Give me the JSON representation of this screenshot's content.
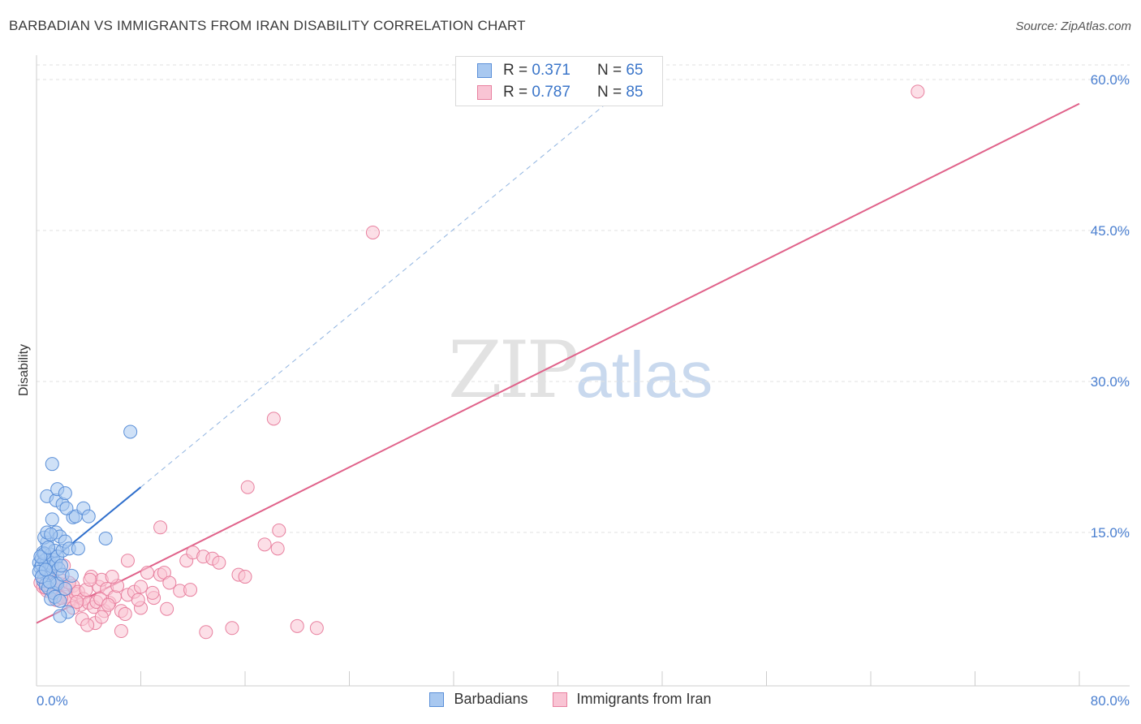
{
  "header": {
    "title": "BARBADIAN VS IMMIGRANTS FROM IRAN DISABILITY CORRELATION CHART",
    "source": "Source: ZipAtlas.com"
  },
  "watermark": {
    "zip": "ZIP",
    "atlas": "atlas"
  },
  "legend": {
    "rows": [
      {
        "r_label": "R =",
        "r_value": "0.371",
        "n_label": "N =",
        "n_value": "65",
        "color": "#a8c8f0",
        "border": "#5a8fd8"
      },
      {
        "r_label": "R =",
        "r_value": "0.787",
        "n_label": "N =",
        "n_value": "85",
        "color": "#f9c4d4",
        "border": "#e8809f"
      }
    ]
  },
  "bottom_legend": {
    "items": [
      "Barbadians",
      "Immigrants from Iran"
    ]
  },
  "colors": {
    "blue_fill": "#a8c8f0",
    "blue_stroke": "#5a8fd8",
    "blue_line": "#2f6fcc",
    "pink_fill": "#f9c4d4",
    "pink_stroke": "#e8809f",
    "pink_line": "#e0628a",
    "grid": "#e2e2e2",
    "tick_text": "#4a7fd0"
  },
  "chart_data": {
    "type": "scatter",
    "title": "BARBADIAN VS IMMIGRANTS FROM IRAN DISABILITY CORRELATION CHART",
    "xlabel": "",
    "ylabel": "Disability",
    "xlim": [
      0,
      80
    ],
    "ylim": [
      0,
      65
    ],
    "x_tick_labels": [
      "0.0%",
      "80.0%"
    ],
    "y_ticks": [
      15,
      30,
      45,
      60
    ],
    "y_tick_labels": [
      "15.0%",
      "30.0%",
      "45.0%",
      "60.0%"
    ],
    "grid": true,
    "legend_position": "top-center",
    "series": [
      {
        "name": "Barbadians",
        "R": 0.371,
        "N": 65,
        "trend": {
          "x0": 0,
          "y0": 11.0,
          "x1": 8.0,
          "y1": 19.5,
          "dashed_to_x": 45,
          "dashed_to_y": 59.0
        },
        "points": [
          [
            0.2,
            12.0
          ],
          [
            0.3,
            11.5
          ],
          [
            0.4,
            12.5
          ],
          [
            0.5,
            11.0
          ],
          [
            0.5,
            13.0
          ],
          [
            0.6,
            12.2
          ],
          [
            0.7,
            11.8
          ],
          [
            0.8,
            12.4
          ],
          [
            0.8,
            14.0
          ],
          [
            0.9,
            11.2
          ],
          [
            1.0,
            12.0
          ],
          [
            1.0,
            10.5
          ],
          [
            1.1,
            12.8
          ],
          [
            1.2,
            11.6
          ],
          [
            1.3,
            12.3
          ],
          [
            1.4,
            13.2
          ],
          [
            1.5,
            11.9
          ],
          [
            1.5,
            10.0
          ],
          [
            1.6,
            12.6
          ],
          [
            1.7,
            11.4
          ],
          [
            0.6,
            14.5
          ],
          [
            0.8,
            15.0
          ],
          [
            1.2,
            16.3
          ],
          [
            1.5,
            15.0
          ],
          [
            1.8,
            14.6
          ],
          [
            2.0,
            13.2
          ],
          [
            2.2,
            14.1
          ],
          [
            2.5,
            13.4
          ],
          [
            2.8,
            16.5
          ],
          [
            3.0,
            16.6
          ],
          [
            0.8,
            18.6
          ],
          [
            1.5,
            18.2
          ],
          [
            1.6,
            19.3
          ],
          [
            2.0,
            17.8
          ],
          [
            2.2,
            18.9
          ],
          [
            2.3,
            17.4
          ],
          [
            3.6,
            17.4
          ],
          [
            4.0,
            16.6
          ],
          [
            1.2,
            21.8
          ],
          [
            7.2,
            25.0
          ],
          [
            0.5,
            10.2
          ],
          [
            0.7,
            9.8
          ],
          [
            0.9,
            9.5
          ],
          [
            1.1,
            8.4
          ],
          [
            1.3,
            9.0
          ],
          [
            1.4,
            8.6
          ],
          [
            1.6,
            9.9
          ],
          [
            1.8,
            8.2
          ],
          [
            2.0,
            10.8
          ],
          [
            2.2,
            9.4
          ],
          [
            2.4,
            7.1
          ],
          [
            1.8,
            6.7
          ],
          [
            0.4,
            11.8
          ],
          [
            0.6,
            12.9
          ],
          [
            0.3,
            12.6
          ],
          [
            0.9,
            13.5
          ],
          [
            1.1,
            14.8
          ],
          [
            2.7,
            10.7
          ],
          [
            5.3,
            14.4
          ],
          [
            3.2,
            13.4
          ],
          [
            0.2,
            11.1
          ],
          [
            0.4,
            10.6
          ],
          [
            0.7,
            11.3
          ],
          [
            1.0,
            10.1
          ],
          [
            1.9,
            11.7
          ]
        ]
      },
      {
        "name": "Immigrants from Iran",
        "R": 0.787,
        "N": 85,
        "trend": {
          "x0": 0,
          "y0": 6.0,
          "x1": 80,
          "y1": 57.6
        },
        "points": [
          [
            0.3,
            10.0
          ],
          [
            0.5,
            9.6
          ],
          [
            0.6,
            10.4
          ],
          [
            0.8,
            9.2
          ],
          [
            1.0,
            9.8
          ],
          [
            1.2,
            10.6
          ],
          [
            1.4,
            9.4
          ],
          [
            1.6,
            8.8
          ],
          [
            1.8,
            9.9
          ],
          [
            2.0,
            10.2
          ],
          [
            2.2,
            8.6
          ],
          [
            2.4,
            9.5
          ],
          [
            2.6,
            8.2
          ],
          [
            2.8,
            9.7
          ],
          [
            3.0,
            8.9
          ],
          [
            3.2,
            9.1
          ],
          [
            3.4,
            7.8
          ],
          [
            3.6,
            8.4
          ],
          [
            3.8,
            9.3
          ],
          [
            4.0,
            8.0
          ],
          [
            4.2,
            10.6
          ],
          [
            4.4,
            7.6
          ],
          [
            4.6,
            8.1
          ],
          [
            4.8,
            9.6
          ],
          [
            5.0,
            10.3
          ],
          [
            5.2,
            7.2
          ],
          [
            5.4,
            9.4
          ],
          [
            5.6,
            8.0
          ],
          [
            6.0,
            8.6
          ],
          [
            6.5,
            7.2
          ],
          [
            7.0,
            8.8
          ],
          [
            7.5,
            9.1
          ],
          [
            8.0,
            9.6
          ],
          [
            8.5,
            11.0
          ],
          [
            9.0,
            8.5
          ],
          [
            9.5,
            10.8
          ],
          [
            10.0,
            7.4
          ],
          [
            11.0,
            9.2
          ],
          [
            11.5,
            12.2
          ],
          [
            12.0,
            13.0
          ],
          [
            12.8,
            12.6
          ],
          [
            13.5,
            12.4
          ],
          [
            14.0,
            12.0
          ],
          [
            15.5,
            10.8
          ],
          [
            16.0,
            10.6
          ],
          [
            17.5,
            13.8
          ],
          [
            18.5,
            13.4
          ],
          [
            20.0,
            5.7
          ],
          [
            21.5,
            5.5
          ],
          [
            6.5,
            5.2
          ],
          [
            4.5,
            6.0
          ],
          [
            3.5,
            6.4
          ],
          [
            2.8,
            7.5
          ],
          [
            3.9,
            5.8
          ],
          [
            7.0,
            12.2
          ],
          [
            9.5,
            15.5
          ],
          [
            13.0,
            5.1
          ],
          [
            15.0,
            5.5
          ],
          [
            5.0,
            6.6
          ],
          [
            8.0,
            7.5
          ],
          [
            11.8,
            9.3
          ],
          [
            9.8,
            11.0
          ],
          [
            10.2,
            10.0
          ],
          [
            7.8,
            8.3
          ],
          [
            6.2,
            9.7
          ],
          [
            5.8,
            10.6
          ],
          [
            4.1,
            10.3
          ],
          [
            2.1,
            11.7
          ],
          [
            1.5,
            8.3
          ],
          [
            0.9,
            10.8
          ],
          [
            1.1,
            9.3
          ],
          [
            1.9,
            8.5
          ],
          [
            2.5,
            10.0
          ],
          [
            3.1,
            8.1
          ],
          [
            1.3,
            10.0
          ],
          [
            0.7,
            9.5
          ],
          [
            4.9,
            8.4
          ],
          [
            5.5,
            7.8
          ],
          [
            6.8,
            6.9
          ],
          [
            8.9,
            9.0
          ],
          [
            16.2,
            19.5
          ],
          [
            18.6,
            15.2
          ],
          [
            18.2,
            26.3
          ],
          [
            25.8,
            44.8
          ],
          [
            67.6,
            58.8
          ]
        ]
      }
    ]
  }
}
